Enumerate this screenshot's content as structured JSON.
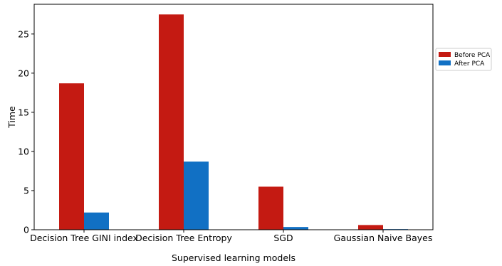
{
  "chart_data": {
    "type": "bar",
    "categories": [
      "Decision Tree GINI index",
      "Decision Tree Entropy",
      "SGD",
      "Gaussian Naive Bayes"
    ],
    "series": [
      {
        "name": "Before PCA",
        "color": "#c41a12",
        "values": [
          18.7,
          27.5,
          5.5,
          0.6
        ]
      },
      {
        "name": "After PCA",
        "color": "#1170c4",
        "values": [
          2.2,
          8.7,
          0.35,
          0.08
        ]
      }
    ],
    "xlabel": "Supervised learning models",
    "ylabel": "Time",
    "ylim": [
      0,
      28.8
    ],
    "yticks": [
      0,
      5,
      10,
      15,
      20,
      25
    ],
    "grid": false,
    "legend": "right-outside"
  }
}
